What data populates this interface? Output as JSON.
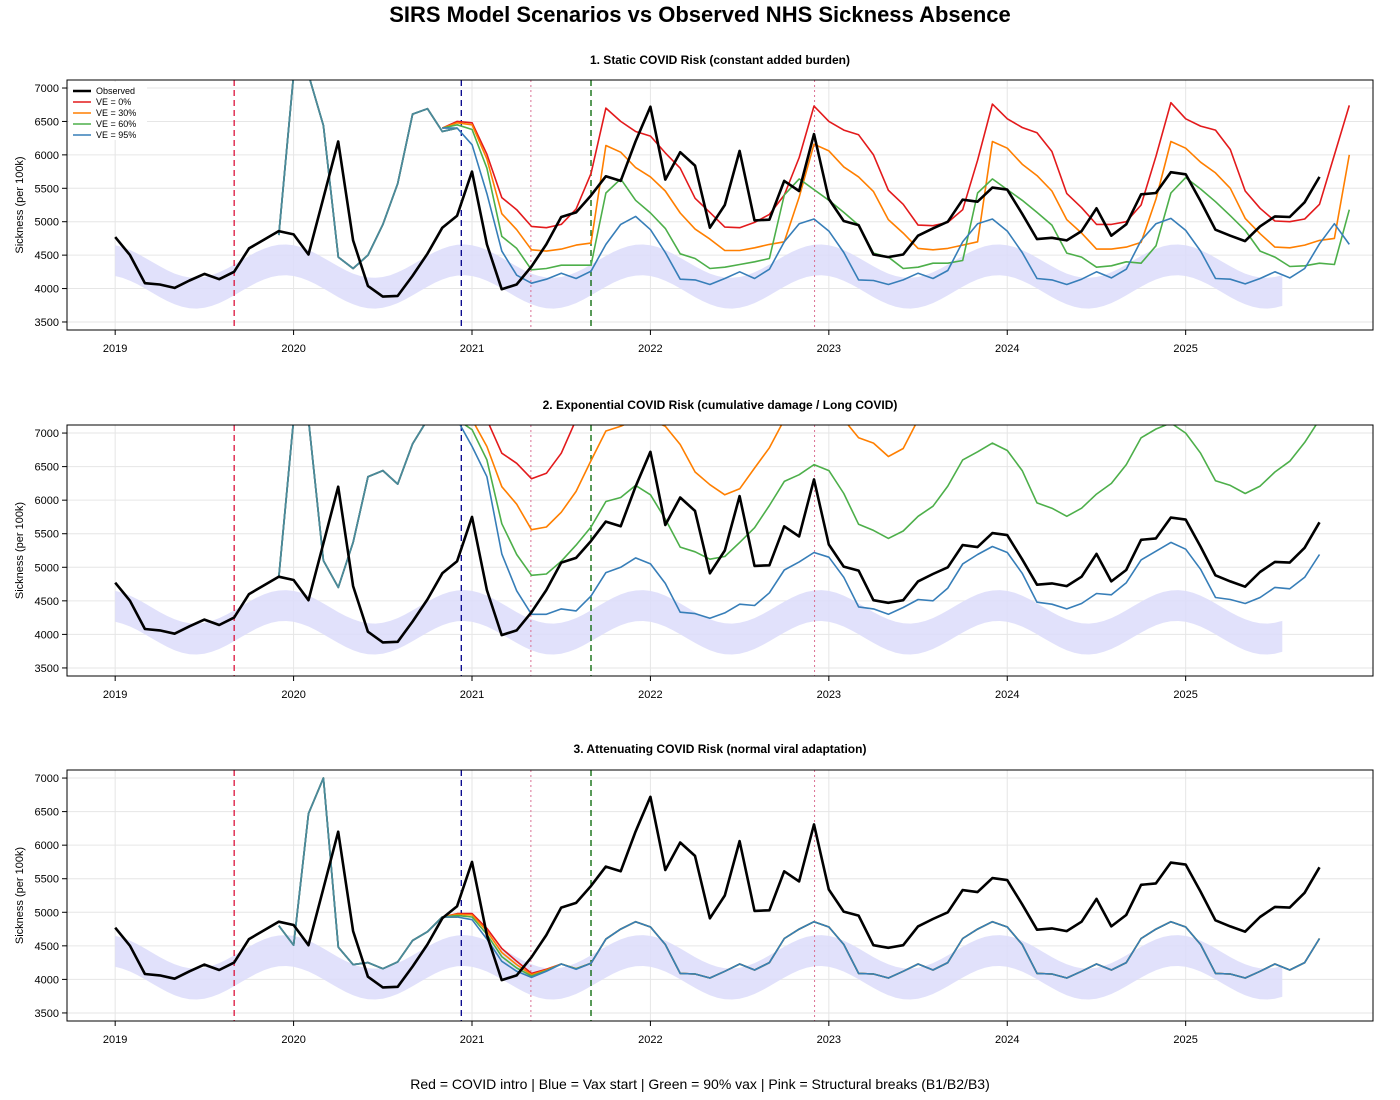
{
  "title": "SIRS Model Scenarios vs Observed NHS Sickness Absence",
  "footer": "Red = COVID intro | Blue = Vax start | Green = 90% vax | Pink = Structural breaks (B1/B2/B3)",
  "colors": {
    "observed": "#000000",
    "ve0": "#e31a1c",
    "ve30": "#ff7f00",
    "ve60": "#4daf4a",
    "ve95": "#377eb8",
    "band": "#dcdcfa",
    "covid_intro": "#dc143c",
    "vax_start": "#00008b",
    "vax90": "#006400",
    "breaks": "#db7093"
  },
  "legend": [
    "Observed",
    "VE = 0%",
    "VE = 30%",
    "VE = 60%",
    "VE = 95%"
  ],
  "chart_data": {
    "type": "line",
    "ylabel": "Sickness (per 100k)",
    "ylim": [
      3380,
      7120
    ],
    "yticks": [
      3500,
      4000,
      4500,
      5000,
      5500,
      6000,
      6500,
      7000
    ],
    "xticks": [
      2019,
      2020,
      2021,
      2022,
      2023,
      2024,
      2025
    ],
    "xlim": [
      2018.73,
      2026.05
    ],
    "vlines": {
      "covid_intro": 2019.667,
      "vax_start": 2020.94,
      "vax90": 2021.667,
      "breaks": [
        2021.33,
        2022.92
      ]
    },
    "band": {
      "x_start": 2019.0,
      "x_end": 2025.58,
      "center": 4180,
      "amplitude": 250,
      "half_width": 230,
      "peak_year_frac": 0.95
    },
    "observed": {
      "x_start": 2019.0,
      "step": 0.0833333,
      "values": [
        4770,
        4500,
        4080,
        4060,
        4010,
        4120,
        4220,
        4140,
        4250,
        4600,
        4730,
        4860,
        4810,
        4510,
        5350,
        6200,
        4720,
        4040,
        3880,
        3890,
        4190,
        4520,
        4910,
        5090,
        5750,
        4660,
        3990,
        4060,
        4330,
        4660,
        5070,
        5140,
        5390,
        5680,
        5610,
        6200,
        6720,
        5630,
        6040,
        5840,
        4910,
        5250,
        6060,
        5020,
        5030,
        5610,
        5460,
        6310,
        5340,
        5010,
        4950,
        4510,
        4470,
        4510,
        4790,
        4900,
        5000,
        5330,
        5300,
        5510,
        5480,
        5120,
        4740,
        4760,
        4720,
        4860,
        5200,
        4790,
        4960,
        5410,
        5430,
        5740,
        5710,
        5310,
        4880,
        4790,
        4710,
        4930,
        5080,
        5070,
        5290,
        5670
      ]
    },
    "panels": [
      {
        "title": "1. Static COVID Risk (constant added burden)",
        "show_legend": true,
        "pre_x_start": 2019.917,
        "pre_values": [
          4800,
          7200,
          7200,
          6440,
          4470,
          4300,
          4500,
          4960,
          5570,
          6610,
          6690,
          6350,
          6400
        ],
        "series_x_start": 2020.917,
        "series": [
          {
            "name": "VE = 0%",
            "key": "ve0",
            "values": [
              6500,
              6480,
              6010,
              5360,
              5180,
              4930,
              4910,
              4960,
              5190,
              5720,
              6700,
              6500,
              6350,
              6280,
              6030,
              5800,
              5350,
              5140,
              4920,
              4910,
              4990,
              5110,
              5400,
              5960,
              6730,
              6500,
              6370,
              6300,
              6000,
              5470,
              5260,
              4950,
              4940,
              4990,
              5180,
              5920,
              6760,
              6540,
              6410,
              6330,
              6050,
              5420,
              5210,
              4960,
              4960,
              5000,
              5250,
              5980,
              6780,
              6540,
              6430,
              6370,
              6080,
              5460,
              5200,
              5010,
              5000,
              5040,
              5260,
              6000,
              6740
            ]
          },
          {
            "name": "VE = 30%",
            "key": "ve30",
            "values": [
              6480,
              6450,
              5940,
              5120,
              4880,
              4580,
              4560,
              4590,
              4650,
              4680,
              6140,
              6040,
              5810,
              5670,
              5460,
              5130,
              4890,
              4740,
              4570,
              4570,
              4610,
              4660,
              4700,
              5370,
              6160,
              6060,
              5820,
              5670,
              5450,
              5030,
              4830,
              4600,
              4580,
              4600,
              4650,
              4700,
              6200,
              6100,
              5860,
              5690,
              5460,
              5030,
              4830,
              4590,
              4590,
              4620,
              4690,
              5340,
              6200,
              6100,
              5890,
              5730,
              5500,
              5050,
              4820,
              4620,
              4610,
              4650,
              4720,
              4750,
              6000
            ]
          },
          {
            "name": "VE = 60%",
            "key": "ve60",
            "values": [
              6450,
              6380,
              5800,
              4780,
              4600,
              4280,
              4300,
              4350,
              4350,
              4350,
              5430,
              5640,
              5320,
              5130,
              4900,
              4520,
              4450,
              4300,
              4320,
              4360,
              4400,
              4450,
              5400,
              5640,
              5480,
              5320,
              5140,
              4950,
              4530,
              4470,
              4300,
              4320,
              4380,
              4380,
              4420,
              5430,
              5640,
              5480,
              5320,
              5140,
              4950,
              4530,
              4470,
              4320,
              4340,
              4400,
              4380,
              4640,
              5430,
              5660,
              5490,
              5300,
              5090,
              4870,
              4560,
              4470,
              4330,
              4340,
              4380,
              4360,
              5180
            ]
          },
          {
            "name": "VE = 95%",
            "key": "ve95",
            "values": [
              6400,
              6150,
              5420,
              4560,
              4200,
              4080,
              4140,
              4230,
              4150,
              4260,
              4660,
              4960,
              5080,
              4880,
              4540,
              4140,
              4130,
              4060,
              4150,
              4250,
              4150,
              4290,
              4700,
              4970,
              5040,
              4860,
              4540,
              4130,
              4120,
              4060,
              4130,
              4230,
              4150,
              4270,
              4700,
              4970,
              5040,
              4860,
              4540,
              4150,
              4130,
              4060,
              4140,
              4250,
              4160,
              4290,
              4720,
              4970,
              5050,
              4870,
              4560,
              4150,
              4140,
              4070,
              4150,
              4250,
              4160,
              4300,
              4670,
              4970,
              4660
            ]
          }
        ]
      },
      {
        "title": "2. Exponential COVID Risk (cumulative damage / Long COVID)",
        "show_legend": false,
        "pre_x_start": 2019.917,
        "pre_values": [
          4850,
          7200,
          7200,
          5100,
          4700,
          5370,
          6350,
          6440,
          6240,
          6840,
          7200,
          7200,
          7200
        ],
        "series_x_start": 2020.917,
        "series": [
          {
            "name": "VE = 0%",
            "key": "ve0",
            "values": [
              7200,
              7200,
              7200,
              6700,
              6550,
              6320,
              6400,
              6700,
              7200,
              7200,
              7200,
              7200,
              7200,
              7200,
              7200,
              7200,
              7200,
              7200,
              7200,
              7200,
              7200,
              7200,
              7200,
              7200,
              7200,
              7200,
              7200,
              7200,
              7200,
              7200,
              7200,
              7200,
              7200,
              7200,
              7200,
              7200,
              7200,
              7200,
              7200,
              7200,
              7200,
              7200,
              7200,
              7200,
              7200,
              7200,
              7200,
              7200,
              7200,
              7200,
              7200,
              7200,
              7200,
              7200,
              7200,
              7200,
              7200,
              7200,
              7200,
              7200,
              7200
            ]
          },
          {
            "name": "VE = 30%",
            "key": "ve30",
            "values": [
              7200,
              7200,
              6800,
              6200,
              5940,
              5560,
              5600,
              5820,
              6130,
              6590,
              7030,
              7100,
              7200,
              7200,
              7100,
              6830,
              6420,
              6230,
              6080,
              6170,
              6480,
              6780,
              7200,
              7200,
              7200,
              7200,
              7200,
              6930,
              6850,
              6650,
              6770,
              7200,
              7200,
              7200,
              7200,
              7200,
              7200,
              7200,
              7200,
              7200,
              7200,
              7200,
              7200,
              7200,
              7200,
              7200,
              7200,
              7200,
              7200,
              7200,
              7200,
              7200,
              7200,
              7200,
              7200,
              7200,
              7200,
              7200,
              7200,
              7200,
              7200
            ]
          },
          {
            "name": "VE = 60%",
            "key": "ve60",
            "values": [
              7200,
              7050,
              6600,
              5650,
              5190,
              4880,
              4900,
              5090,
              5330,
              5600,
              5980,
              6040,
              6220,
              6080,
              5720,
              5300,
              5230,
              5120,
              5160,
              5370,
              5590,
              5920,
              6280,
              6380,
              6530,
              6440,
              6100,
              5640,
              5550,
              5430,
              5540,
              5760,
              5910,
              6210,
              6600,
              6720,
              6850,
              6740,
              6440,
              5960,
              5880,
              5760,
              5880,
              6090,
              6250,
              6530,
              6930,
              7060,
              7150,
              7000,
              6700,
              6290,
              6220,
              6100,
              6210,
              6420,
              6580,
              6860,
              7200,
              7200,
              7200
            ]
          },
          {
            "name": "VE = 95%",
            "key": "ve95",
            "values": [
              7200,
              6800,
              6350,
              5200,
              4650,
              4300,
              4300,
              4380,
              4350,
              4570,
              4920,
              5000,
              5140,
              5050,
              4760,
              4330,
              4310,
              4240,
              4320,
              4450,
              4430,
              4620,
              4960,
              5080,
              5220,
              5150,
              4850,
              4410,
              4380,
              4300,
              4400,
              4520,
              4500,
              4690,
              5050,
              5190,
              5310,
              5220,
              4910,
              4480,
              4450,
              4380,
              4460,
              4610,
              4590,
              4770,
              5110,
              5240,
              5370,
              5270,
              4970,
              4550,
              4520,
              4460,
              4550,
              4700,
              4680,
              4850,
              5190
            ]
          }
        ]
      },
      {
        "title": "3. Attenuating COVID Risk (normal viral adaptation)",
        "show_legend": false,
        "pre_x_start": 2019.917,
        "pre_values": [
          4800,
          4510,
          6470,
          7000,
          4480,
          4220,
          4250,
          4160,
          4260,
          4580,
          4710,
          4930,
          4930
        ],
        "series_x_start": 2020.917,
        "series": [
          {
            "name": "VE = 0%",
            "key": "ve0",
            "values": [
              4980,
              4980,
              4760,
              4460,
              4270,
              4090,
              4150,
              4230,
              4160,
              4240,
              4600,
              4750,
              4860,
              4780,
              4520,
              4090,
              4080,
              4020,
              4120,
              4230,
              4140,
              4250,
              4610,
              4750,
              4860,
              4780,
              4520,
              4090,
              4080,
              4020,
              4120,
              4230,
              4140,
              4250,
              4610,
              4750,
              4860,
              4780,
              4520,
              4090,
              4080,
              4020,
              4120,
              4230,
              4140,
              4250,
              4610,
              4750,
              4860,
              4780,
              4520,
              4090,
              4080,
              4020,
              4120,
              4230,
              4140,
              4250,
              4610
            ]
          },
          {
            "name": "VE = 30%",
            "key": "ve30",
            "values": [
              4970,
              4960,
              4720,
              4400,
              4220,
              4070,
              4140,
              4230,
              4160,
              4240,
              4600,
              4750,
              4860,
              4780,
              4520,
              4090,
              4080,
              4020,
              4120,
              4230,
              4140,
              4250,
              4610,
              4750,
              4860,
              4780,
              4520,
              4090,
              4080,
              4020,
              4120,
              4230,
              4140,
              4250,
              4610,
              4750,
              4860,
              4780,
              4520,
              4090,
              4080,
              4020,
              4120,
              4230,
              4140,
              4250,
              4610,
              4750,
              4860,
              4780,
              4520,
              4090,
              4080,
              4020,
              4120,
              4230,
              4140,
              4250,
              4610
            ]
          },
          {
            "name": "VE = 60%",
            "key": "ve60",
            "values": [
              4950,
              4930,
              4670,
              4340,
              4170,
              4050,
              4130,
              4230,
              4160,
              4240,
              4600,
              4750,
              4860,
              4780,
              4520,
              4090,
              4080,
              4020,
              4120,
              4230,
              4140,
              4250,
              4610,
              4750,
              4860,
              4780,
              4520,
              4090,
              4080,
              4020,
              4120,
              4230,
              4140,
              4250,
              4610,
              4750,
              4860,
              4780,
              4520,
              4090,
              4080,
              4020,
              4120,
              4230,
              4140,
              4250,
              4610,
              4750,
              4860,
              4780,
              4520,
              4090,
              4080,
              4020,
              4120,
              4230,
              4140,
              4250,
              4610
            ]
          },
          {
            "name": "VE = 95%",
            "key": "ve95",
            "values": [
              4930,
              4890,
              4600,
              4270,
              4120,
              4030,
              4120,
              4230,
              4150,
              4240,
              4600,
              4750,
              4860,
              4780,
              4520,
              4090,
              4080,
              4020,
              4120,
              4230,
              4140,
              4250,
              4610,
              4750,
              4860,
              4780,
              4520,
              4090,
              4080,
              4020,
              4120,
              4230,
              4140,
              4250,
              4610,
              4750,
              4860,
              4780,
              4520,
              4090,
              4080,
              4020,
              4120,
              4230,
              4140,
              4250,
              4610,
              4750,
              4860,
              4780,
              4520,
              4090,
              4080,
              4020,
              4120,
              4230,
              4140,
              4250,
              4610
            ]
          }
        ]
      }
    ]
  }
}
